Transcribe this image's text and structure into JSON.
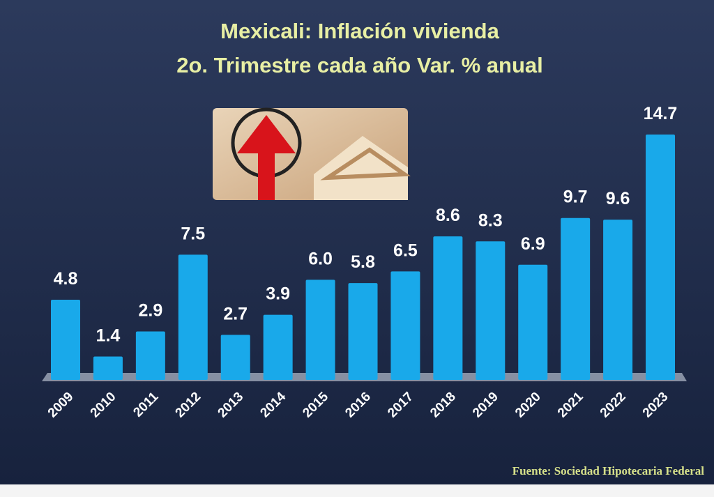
{
  "chart_data": {
    "type": "bar",
    "title": "Mexicali: Inflación vivienda",
    "subtitle": "2o. Trimestre cada año Var. % anual",
    "categories": [
      "2009",
      "2010",
      "2011",
      "2012",
      "2013",
      "2014",
      "2015",
      "2016",
      "2017",
      "2018",
      "2019",
      "2020",
      "2021",
      "2022",
      "2023"
    ],
    "values": [
      4.8,
      1.4,
      2.9,
      7.5,
      2.7,
      3.9,
      6.0,
      5.8,
      6.5,
      8.6,
      8.3,
      6.9,
      9.7,
      9.6,
      14.7
    ],
    "value_labels": [
      "4.8",
      "1.4",
      "2.9",
      "7.5",
      "2.7",
      "3.9",
      "6.0",
      "5.8",
      "6.5",
      "8.6",
      "8.3",
      "6.9",
      "9.7",
      "9.6",
      "14.7"
    ],
    "color": "#19a9ea",
    "source": "Fuente:  Sociedad Hipotecaria Federal"
  }
}
